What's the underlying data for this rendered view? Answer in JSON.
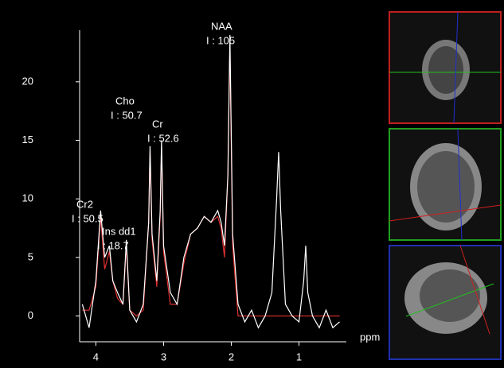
{
  "chart_data": {
    "type": "line",
    "x": [
      4.2,
      4.1,
      4.0,
      3.93,
      3.87,
      3.8,
      3.75,
      3.68,
      3.6,
      3.55,
      3.5,
      3.4,
      3.3,
      3.22,
      3.2,
      3.17,
      3.1,
      3.05,
      3.03,
      3.0,
      2.9,
      2.8,
      2.7,
      2.6,
      2.5,
      2.4,
      2.3,
      2.2,
      2.15,
      2.1,
      2.05,
      2.02,
      1.98,
      1.9,
      1.8,
      1.7,
      1.6,
      1.5,
      1.4,
      1.33,
      1.3,
      1.27,
      1.2,
      1.1,
      1.0,
      0.93,
      0.9,
      0.87,
      0.8,
      0.7,
      0.6,
      0.5,
      0.4
    ],
    "series": [
      {
        "color": "#ffffff",
        "values": [
          1,
          -1,
          3,
          9,
          5,
          6,
          3,
          2,
          1,
          6.5,
          0.5,
          -0.5,
          1,
          8,
          14.5,
          7,
          3,
          9,
          15,
          6,
          2,
          1,
          5,
          7,
          7.5,
          8.5,
          8,
          9,
          8,
          6,
          12,
          24,
          7,
          1,
          -0.5,
          0.5,
          -1,
          0,
          2,
          10,
          14,
          9,
          1,
          0,
          -0.5,
          3,
          6,
          2,
          0,
          -1,
          0.5,
          -1,
          -0.5
        ]
      },
      {
        "color": "#e03030",
        "values": [
          0.5,
          0.5,
          2.5,
          8.5,
          4,
          5.5,
          3,
          1.5,
          1,
          6,
          0.5,
          0,
          0.5,
          8,
          14,
          6.5,
          2.5,
          8.5,
          14.5,
          5.5,
          1,
          1,
          4.5,
          7,
          7.5,
          8.5,
          8,
          8.5,
          7.5,
          5,
          12,
          23,
          6,
          0,
          0,
          0,
          0,
          0,
          0,
          0,
          0,
          0,
          0,
          0,
          0,
          0,
          0,
          0,
          0,
          0,
          0,
          0,
          0
        ]
      }
    ],
    "xlabel": "ppm",
    "xlim": [
      4.24,
      0.3
    ],
    "xticks": [
      4,
      3,
      2,
      1
    ],
    "ylim": [
      -2.2,
      24.4
    ],
    "yticks": [
      0,
      5,
      10,
      15,
      20
    ],
    "annotations": [
      {
        "name": "NAA",
        "label": "I : 105"
      },
      {
        "name": "Cho",
        "label": "I : 50.7"
      },
      {
        "name": "Cr",
        "label": "I : 52.6"
      },
      {
        "name": "Cr2",
        "label": "I : 50.5"
      },
      {
        "name": "Ins dd1",
        "label": "I : 18.7"
      }
    ],
    "annotation_color": "#e8e070"
  }
}
